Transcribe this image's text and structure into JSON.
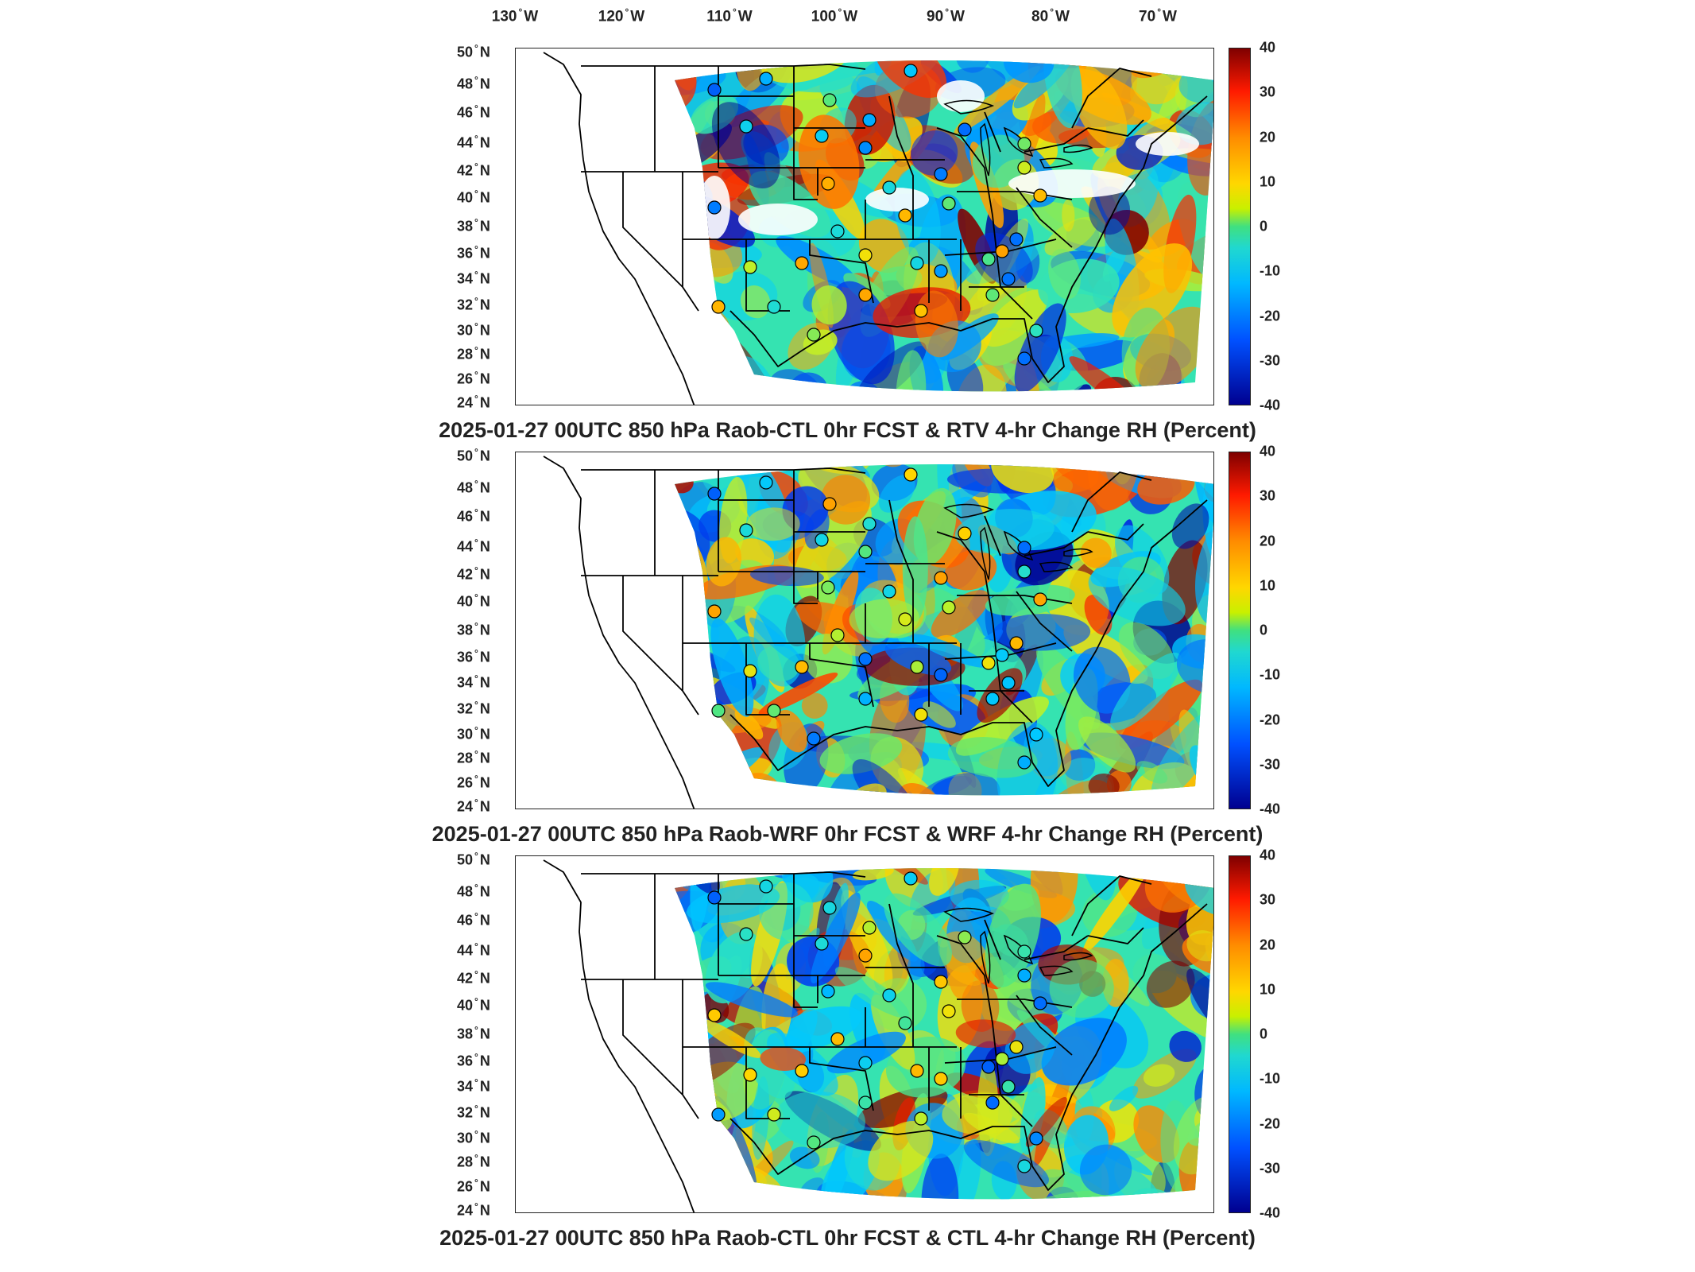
{
  "longitude_labels": [
    {
      "num": "130",
      "hemi": "W"
    },
    {
      "num": "120",
      "hemi": "W"
    },
    {
      "num": "110",
      "hemi": "W"
    },
    {
      "num": "100",
      "hemi": "W"
    },
    {
      "num": "90",
      "hemi": "W"
    },
    {
      "num": "80",
      "hemi": "W"
    },
    {
      "num": "70",
      "hemi": "W"
    }
  ],
  "latitude_labels": [
    {
      "num": "50",
      "hemi": "N"
    },
    {
      "num": "48",
      "hemi": "N"
    },
    {
      "num": "46",
      "hemi": "N"
    },
    {
      "num": "44",
      "hemi": "N"
    },
    {
      "num": "42",
      "hemi": "N"
    },
    {
      "num": "40",
      "hemi": "N"
    },
    {
      "num": "38",
      "hemi": "N"
    },
    {
      "num": "36",
      "hemi": "N"
    },
    {
      "num": "34",
      "hemi": "N"
    },
    {
      "num": "32",
      "hemi": "N"
    },
    {
      "num": "30",
      "hemi": "N"
    },
    {
      "num": "28",
      "hemi": "N"
    },
    {
      "num": "26",
      "hemi": "N"
    },
    {
      "num": "24",
      "hemi": "N"
    }
  ],
  "colorbar_ticks": [
    "40",
    "30",
    "20",
    "10",
    "0",
    "-10",
    "-20",
    "-30",
    "-40"
  ],
  "colorbar_range": [
    -40,
    40
  ],
  "colors": {
    "high": "#7f0000",
    "mid": "#40e080",
    "low": "#00008f"
  },
  "panels": [
    {
      "title": "2025-01-27 00UTC 850 hPa Raob-CTL 0hr FCST & RTV 4-hr Change RH (Percent)"
    },
    {
      "title": "2025-01-27 00UTC 850 hPa Raob-WRF 0hr FCST & WRF 4-hr Change RH (Percent)"
    },
    {
      "title": "2025-01-27 00UTC 850 hPa Raob-CTL 0hr FCST & CTL 4-hr Change RH (Percent)"
    }
  ]
}
